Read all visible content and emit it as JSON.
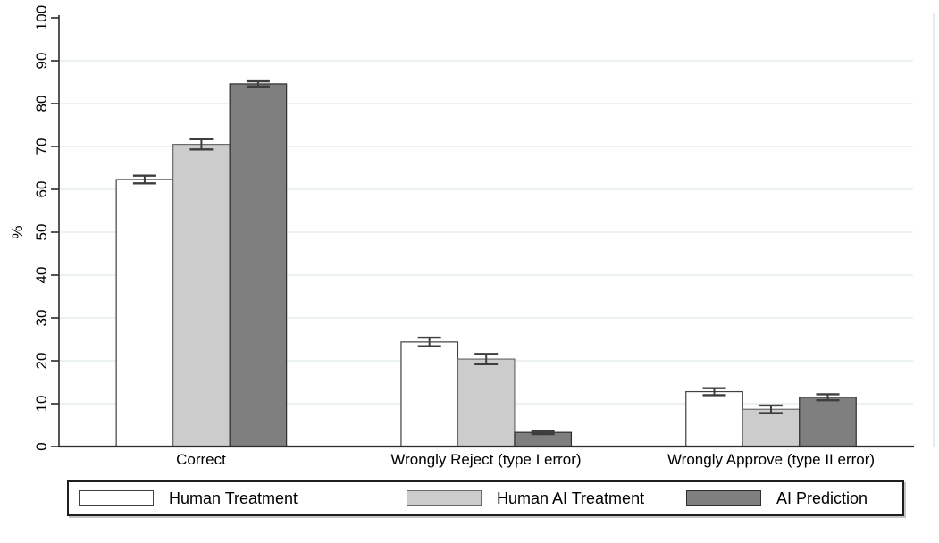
{
  "chart_data": {
    "type": "bar",
    "title": "",
    "ylabel": "%",
    "xlabel": "",
    "ylim": [
      0,
      100
    ],
    "yticks": [
      0,
      10,
      20,
      30,
      40,
      50,
      60,
      70,
      80,
      90,
      100
    ],
    "grid": true,
    "legend_position": "bottom",
    "error_bars": true,
    "categories": [
      "Correct",
      "Wrongly Reject (type I error)",
      "Wrongly Approve (type II error)"
    ],
    "series": [
      {
        "name": "Human Treatment",
        "values": [
          62.3,
          24.4,
          12.8
        ],
        "errors": [
          0.9,
          1.0,
          0.8
        ],
        "fill": "#ffffff",
        "stroke": "#404040"
      },
      {
        "name": "Human AI Treatment",
        "values": [
          70.5,
          20.4,
          8.7
        ],
        "errors": [
          1.2,
          1.2,
          0.9
        ],
        "fill": "#cccccc",
        "stroke": "#6b6b6b"
      },
      {
        "name": "AI Prediction",
        "values": [
          84.6,
          3.3,
          11.5
        ],
        "errors": [
          0.6,
          0.4,
          0.7
        ],
        "fill": "#7f7f7f",
        "stroke": "#2e2e2e"
      }
    ],
    "colors": {
      "background": "#ffffff",
      "gridline": "#e9f0f1",
      "axis": "#2b2b2b",
      "error_bar": "#3d3d3d",
      "plot_right_border": "#dde5e7",
      "legend_border": "#1f1f1f"
    }
  }
}
